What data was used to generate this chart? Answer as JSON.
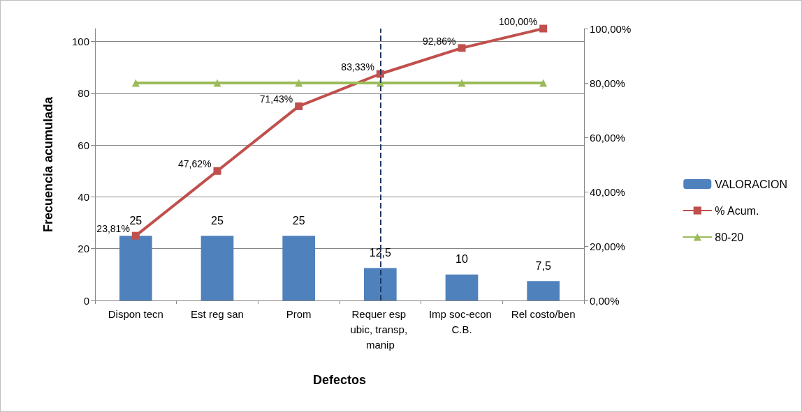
{
  "chart_data": {
    "type": "bar",
    "xlabel": "Defectos",
    "ylabel": "Frecuencia acumulada",
    "categories": [
      "Dispon tecn",
      "Est reg san",
      "Prom",
      "Requer esp ubic, transp, manip",
      "Imp soc-econ C.B.",
      "Rel costo/ben"
    ],
    "series": [
      {
        "name": "VALORACION",
        "color": "#4f81bd",
        "values": [
          25,
          25,
          25,
          12.5,
          10,
          7.5
        ],
        "value_labels": [
          "25",
          "25",
          "25",
          "12,5",
          "10",
          "7,5"
        ]
      },
      {
        "name": "% Acum.",
        "type": "line",
        "axis": "y2",
        "color": "#c0504d",
        "marker": "square",
        "values": [
          0.2381,
          0.4762,
          0.7143,
          0.8333,
          0.9286,
          1.0
        ],
        "value_labels": [
          "23,81%",
          "47,62%",
          "71,43%",
          "83,33%",
          "92,86%",
          "100,00%"
        ]
      },
      {
        "name": "80-20",
        "type": "line",
        "axis": "y2",
        "color": "#9bbb59",
        "marker": "triangle",
        "values": [
          0.8,
          0.8,
          0.8,
          0.8,
          0.8,
          0.8
        ]
      }
    ],
    "ylim": [
      0,
      105
    ],
    "yticks": [
      0,
      20,
      40,
      60,
      80,
      100
    ],
    "y2lim": [
      0,
      1
    ],
    "y2ticks": [
      {
        "value": 0,
        "label": "0,00%"
      },
      {
        "value": 0.2,
        "label": "20,00%"
      },
      {
        "value": 0.4,
        "label": "40,00%"
      },
      {
        "value": 0.6,
        "label": "60,00%"
      },
      {
        "value": 0.8,
        "label": "80,00%"
      },
      {
        "value": 1,
        "label": "100,00%"
      }
    ],
    "ref_lines": [
      {
        "axis": "x",
        "value": "Requer esp ubic, transp, manip",
        "color": "#1f3864",
        "line_style": "dashed"
      }
    ],
    "grid": "y",
    "legend": "right"
  }
}
